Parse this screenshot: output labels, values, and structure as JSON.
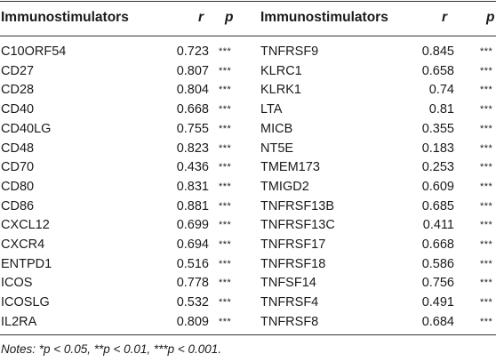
{
  "header": {
    "col_name_left": "Immunostimulators",
    "col_r_left": "r",
    "col_p_left": "p",
    "col_name_right": "Immunostimulators",
    "col_r_right": "r",
    "col_p_right": "p"
  },
  "rows_left": [
    {
      "name": "C10ORF54",
      "r": "0.723",
      "p": "***"
    },
    {
      "name": "CD27",
      "r": "0.807",
      "p": "***"
    },
    {
      "name": "CD28",
      "r": "0.804",
      "p": "***"
    },
    {
      "name": "CD40",
      "r": "0.668",
      "p": "***"
    },
    {
      "name": "CD40LG",
      "r": "0.755",
      "p": "***"
    },
    {
      "name": "CD48",
      "r": "0.823",
      "p": "***"
    },
    {
      "name": "CD70",
      "r": "0.436",
      "p": "***"
    },
    {
      "name": "CD80",
      "r": "0.831",
      "p": "***"
    },
    {
      "name": "CD86",
      "r": "0.881",
      "p": "***"
    },
    {
      "name": "CXCL12",
      "r": "0.699",
      "p": "***"
    },
    {
      "name": "CXCR4",
      "r": "0.694",
      "p": "***"
    },
    {
      "name": "ENTPD1",
      "r": "0.516",
      "p": "***"
    },
    {
      "name": "ICOS",
      "r": "0.778",
      "p": "***"
    },
    {
      "name": "ICOSLG",
      "r": "0.532",
      "p": "***"
    },
    {
      "name": "IL2RA",
      "r": "0.809",
      "p": "***"
    }
  ],
  "rows_right": [
    {
      "name": "TNFRSF9",
      "r": "0.845",
      "p": "***"
    },
    {
      "name": "KLRC1",
      "r": "0.658",
      "p": "***"
    },
    {
      "name": "KLRK1",
      "r": "0.74",
      "p": "***"
    },
    {
      "name": "LTA",
      "r": "0.81",
      "p": "***"
    },
    {
      "name": "MICB",
      "r": "0.355",
      "p": "***"
    },
    {
      "name": "NT5E",
      "r": "0.183",
      "p": "***"
    },
    {
      "name": "TMEM173",
      "r": "0.253",
      "p": "***"
    },
    {
      "name": "TMIGD2",
      "r": "0.609",
      "p": "***"
    },
    {
      "name": "TNFRSF13B",
      "r": "0.685",
      "p": "***"
    },
    {
      "name": "TNFRSF13C",
      "r": "0.411",
      "p": "***"
    },
    {
      "name": "TNFRSF17",
      "r": "0.668",
      "p": "***"
    },
    {
      "name": "TNFRSF18",
      "r": "0.586",
      "p": "***"
    },
    {
      "name": "TNFSF14",
      "r": "0.756",
      "p": "***"
    },
    {
      "name": "TNFRSF4",
      "r": "0.491",
      "p": "***"
    },
    {
      "name": "TNFRSF8",
      "r": "0.684",
      "p": "***"
    }
  ],
  "notes": {
    "lead": "Notes:",
    "text": " *p < 0.05, **p < 0.01, ***p < 0.001."
  }
}
